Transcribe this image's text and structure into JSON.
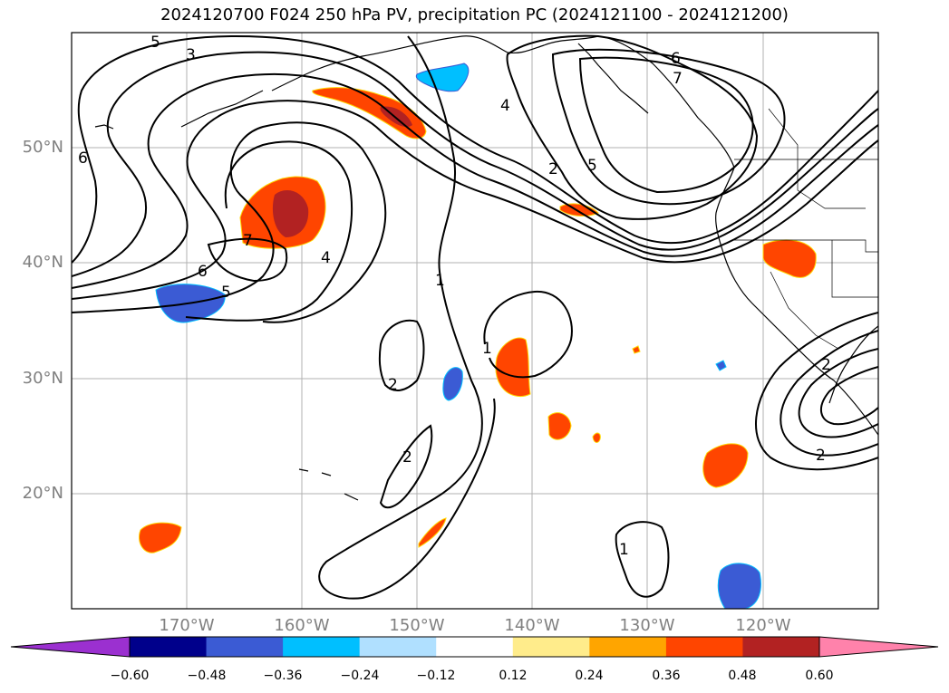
{
  "title": "2024120700 F024 250 hPa PV, precipitation PC (2024121100 - 2024121200)",
  "lat_labels": [
    "50°N",
    "40°N",
    "30°N",
    "20°N"
  ],
  "lon_labels": [
    "170°W",
    "160°W",
    "150°W",
    "140°W",
    "130°W",
    "120°W"
  ],
  "colorbar": {
    "colors": [
      "#9b30d0",
      "#00008b",
      "#3b5bd4",
      "#00bfff",
      "#b0e0ff",
      "#ffffff",
      "#ffec8b",
      "#ffa500",
      "#ff4500",
      "#b22222",
      "#ff82ab"
    ],
    "ticks": [
      "−0.60",
      "−0.48",
      "−0.36",
      "−0.24",
      "−0.12",
      "0.12",
      "0.24",
      "0.36",
      "0.48",
      "0.60"
    ]
  },
  "contour_labels": [
    "5",
    "3",
    "6",
    "7",
    "4",
    "1",
    "2",
    "1",
    "2",
    "2",
    "6",
    "7",
    "4",
    "5",
    "2",
    "6",
    "2",
    "1",
    "5"
  ]
}
